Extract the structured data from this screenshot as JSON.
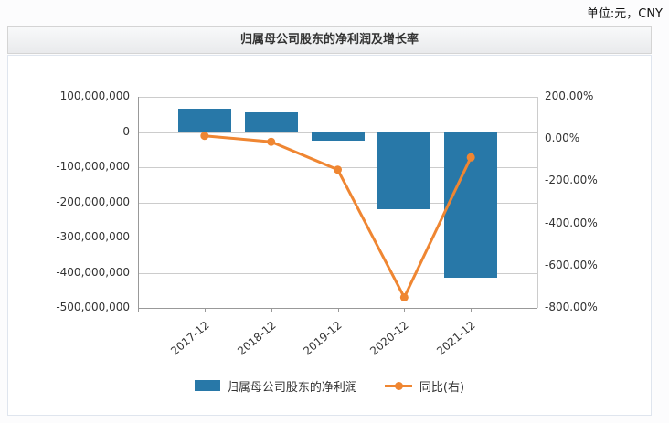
{
  "page": {
    "unit_label": "单位:元，CNY"
  },
  "header": {
    "title": "归属母公司股东的净利润及增长率"
  },
  "chart_data": {
    "type": "bar",
    "combo_types": [
      "bar",
      "line"
    ],
    "title": "归属母公司股东的净利润及增长率",
    "unit": "元, CNY",
    "categories": [
      "2017-12",
      "2018-12",
      "2019-12",
      "2020-12",
      "2021-12"
    ],
    "series": [
      {
        "name": "归属母公司股东的净利润",
        "type": "bar",
        "yaxis": "left",
        "values": [
          65000000,
          55000000,
          -25000000,
          -220000000,
          -413000000
        ]
      },
      {
        "name": "同比(右)",
        "type": "line",
        "yaxis": "right",
        "unit": "%",
        "values": [
          15,
          -13,
          -145,
          -750,
          -87
        ]
      }
    ],
    "left_axis": {
      "min": -500000000,
      "max": 100000000,
      "step": 100000000,
      "tick_labels": [
        "100,000,000",
        "0",
        "-100,000,000",
        "-200,000,000",
        "-300,000,000",
        "-400,000,000",
        "-500,000,000"
      ]
    },
    "right_axis": {
      "min": -800,
      "max": 200,
      "step": 200,
      "tick_labels": [
        "200.00%",
        "0.00%",
        "-200.00%",
        "-400.00%",
        "-600.00%",
        "-800.00%"
      ]
    },
    "legend": {
      "position": "bottom",
      "items": [
        "归属母公司股东的净利润",
        "同比(右)"
      ]
    },
    "grid": true
  },
  "colors": {
    "bar": "#2878a8",
    "line": "#ef8632",
    "grid_line": "#cccccc",
    "axis_line": "#999999",
    "axis_text": "#333333",
    "panel_border": "#dfe5ee",
    "panel_bg": "#ffffff",
    "titlebar_bg_top": "#f8f9fa",
    "titlebar_bg_bottom": "#e9eaec"
  }
}
